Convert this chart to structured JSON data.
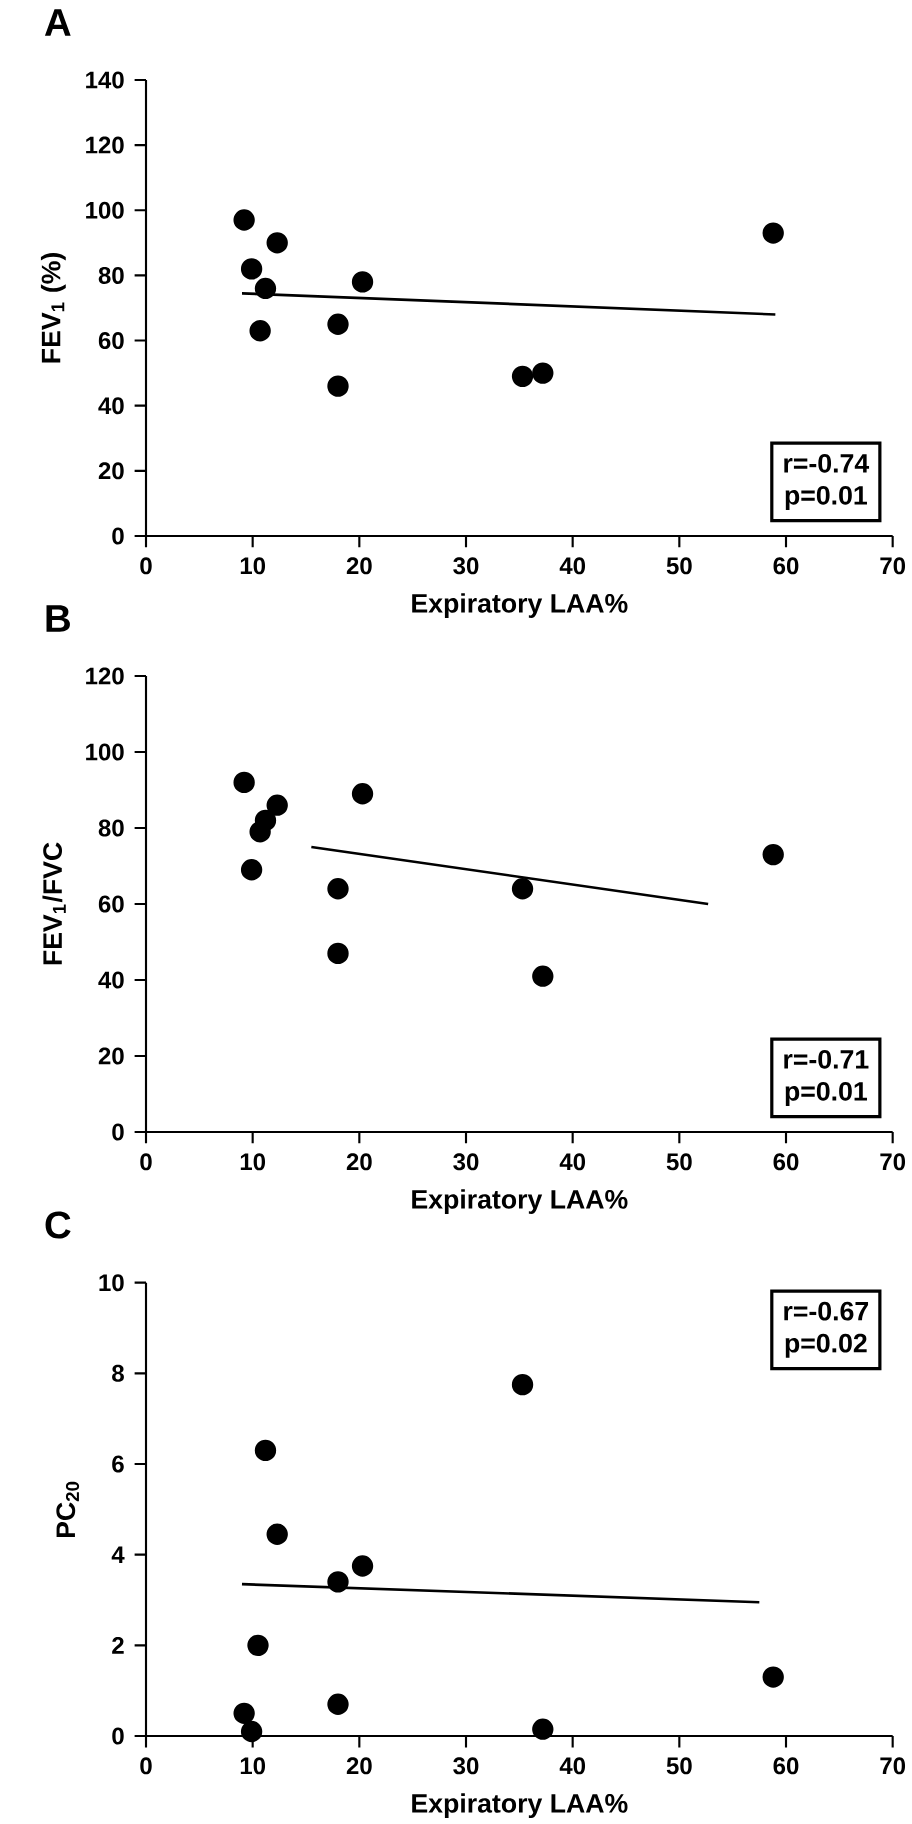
{
  "chart_data": [
    {
      "type": "scatter",
      "title": "A",
      "xlabel": "Expiratory LAA%",
      "ylabel": "FEV$_{1}$ (%)",
      "xlim": [
        0,
        70
      ],
      "ylim": [
        0,
        140
      ],
      "xticks": [
        0,
        10,
        20,
        30,
        40,
        50,
        60,
        70
      ],
      "yticks": [
        0,
        20,
        40,
        60,
        80,
        100,
        120,
        140
      ],
      "marker": "circle",
      "annotations": [
        "r=-0.74",
        "p=0.01"
      ],
      "series": [
        {
          "type": "scatter",
          "color": "#000000",
          "x": [
            9.2,
            9.9,
            11.2,
            10.7,
            12.3,
            18,
            18,
            20.3,
            35.3,
            37.2,
            58.8
          ],
          "values": [
            97,
            82,
            76,
            63,
            90,
            65,
            46,
            78,
            49,
            50,
            93
          ]
        },
        {
          "type": "line",
          "color": "#000000",
          "marker": "none",
          "x": [
            9,
            59
          ],
          "values": [
            74.5,
            68
          ]
        }
      ]
    },
    {
      "type": "scatter",
      "title": "B",
      "xlabel": "Expiratory LAA%",
      "ylabel": "FEV$_{1}$/FVC",
      "xlim": [
        0,
        70
      ],
      "ylim": [
        0,
        120
      ],
      "xticks": [
        0,
        10,
        20,
        30,
        40,
        50,
        60,
        70
      ],
      "yticks": [
        0,
        20,
        40,
        60,
        80,
        100,
        120
      ],
      "marker": "circle",
      "annotations": [
        "r=-0.71",
        "p=0.01"
      ],
      "series": [
        {
          "type": "scatter",
          "color": "#000000",
          "x": [
            9.2,
            9.9,
            10.7,
            11.2,
            12.3,
            18,
            18,
            20.3,
            35.3,
            37.2,
            58.8
          ],
          "values": [
            92,
            69,
            79,
            82,
            86,
            64,
            47,
            89,
            64,
            41,
            73
          ]
        },
        {
          "type": "line",
          "color": "#000000",
          "marker": "none",
          "x": [
            15.5,
            52.7
          ],
          "values": [
            75,
            60
          ]
        }
      ]
    },
    {
      "type": "scatter",
      "title": "C",
      "xlabel": "Expiratory LAA%",
      "ylabel": "PC$_{20}$",
      "xlim": [
        0,
        70
      ],
      "ylim": [
        0,
        10
      ],
      "xticks": [
        0,
        10,
        20,
        30,
        40,
        50,
        60,
        70
      ],
      "yticks": [
        0,
        2,
        4,
        6,
        8,
        10
      ],
      "marker": "circle",
      "annotations": [
        "r=-0.67",
        "p=0.02"
      ],
      "series": [
        {
          "type": "scatter",
          "color": "#000000",
          "x": [
            9.2,
            9.9,
            10.5,
            11.2,
            12.3,
            18,
            18,
            20.3,
            35.3,
            37.2,
            58.8
          ],
          "values": [
            0.5,
            0.1,
            2,
            6.3,
            4.45,
            3.4,
            0.7,
            3.75,
            7.75,
            0.15,
            1.3
          ]
        },
        {
          "type": "line",
          "color": "#000000",
          "marker": "none",
          "x": [
            9,
            57.5
          ],
          "values": [
            3.35,
            2.95
          ]
        }
      ]
    }
  ]
}
